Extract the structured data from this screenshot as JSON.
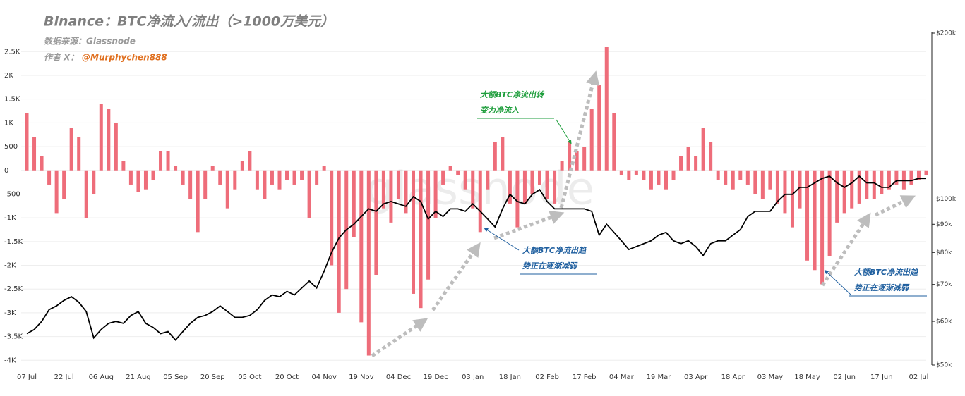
{
  "chart_data": {
    "type": "bar",
    "title": "Binance：BTC净流入/流出（>1000万美元）",
    "subtitle": "数据来源：Glassnode",
    "author_label": "作者 X：",
    "author_handle": "@Murphychen888",
    "watermark": "glassnode",
    "categories": [
      "07 Jul",
      null,
      null,
      null,
      null,
      "22 Jul",
      null,
      null,
      null,
      null,
      "06 Aug",
      null,
      null,
      null,
      null,
      "21 Aug",
      null,
      null,
      null,
      null,
      "05 Sep",
      null,
      null,
      null,
      null,
      "20 Sep",
      null,
      null,
      null,
      null,
      "05 Oct",
      null,
      null,
      null,
      null,
      "20 Oct",
      null,
      null,
      null,
      null,
      "04 Nov",
      null,
      null,
      null,
      null,
      "19 Nov",
      null,
      null,
      null,
      null,
      "04 Dec",
      null,
      null,
      null,
      null,
      "19 Dec",
      null,
      null,
      null,
      null,
      "03 Jan",
      null,
      null,
      null,
      null,
      "18 Jan",
      null,
      null,
      null,
      null,
      "02 Feb",
      null,
      null,
      null,
      null,
      "17 Feb",
      null,
      null,
      null,
      null,
      "04 Mar",
      null,
      null,
      null,
      null,
      "19 Mar",
      null,
      null,
      null,
      null,
      "03 Apr",
      null,
      null,
      null,
      null,
      "18 Apr",
      null,
      null,
      null,
      null,
      "03 May",
      null,
      null,
      null,
      null,
      "18 May",
      null,
      null,
      null,
      null,
      "02 Jun",
      null,
      null,
      null,
      null,
      "17 Jun",
      null,
      null,
      null,
      null,
      "02 Jul",
      null
    ],
    "series": [
      {
        "type": "bar",
        "color": "#ee6d7a",
        "values": [
          1200,
          700,
          300,
          -300,
          -900,
          -600,
          900,
          700,
          -1000,
          -500,
          1400,
          1300,
          1000,
          200,
          -300,
          -450,
          -400,
          -200,
          400,
          400,
          100,
          -300,
          -600,
          -1300,
          -600,
          100,
          -300,
          -800,
          -400,
          200,
          400,
          -400,
          -600,
          -300,
          -400,
          -200,
          -300,
          -200,
          -1000,
          -300,
          100,
          -2000,
          -3000,
          -2500,
          -1400,
          -3200,
          -3900,
          -2200,
          -800,
          -1100,
          -600,
          -900,
          -2600,
          -2900,
          -2300,
          -1000,
          -300,
          100,
          -100,
          -400,
          -800,
          -1300,
          -400,
          600,
          700,
          -700,
          -1200,
          -700,
          -500,
          -300,
          -600,
          -700,
          200,
          600,
          400,
          500,
          1300,
          1800,
          2600,
          1200,
          -100,
          -200,
          -100,
          -200,
          -400,
          -300,
          -400,
          -200,
          300,
          500,
          300,
          900,
          600,
          -200,
          -300,
          -400,
          -200,
          -300,
          -500,
          -600,
          -400,
          -700,
          -900,
          -1200,
          -800,
          -1900,
          -2100,
          -2400,
          -1800,
          -1100,
          -900,
          -800,
          -700,
          -600,
          -600,
          -500,
          -400,
          -300,
          -400,
          -300,
          -200,
          -100
        ]
      },
      {
        "type": "line",
        "axis": "y2",
        "color": "#000000",
        "values": [
          57000,
          58000,
          60000,
          63000,
          64000,
          65500,
          66500,
          65000,
          62500,
          56000,
          58000,
          59500,
          60000,
          59500,
          61500,
          62500,
          59500,
          58500,
          57000,
          57500,
          55500,
          57500,
          59500,
          61000,
          61500,
          62500,
          64000,
          62500,
          61000,
          61000,
          61500,
          63000,
          65500,
          67000,
          66500,
          68000,
          67000,
          69000,
          71000,
          69000,
          74000,
          80000,
          85000,
          88000,
          90000,
          93000,
          96000,
          95000,
          98000,
          99000,
          98000,
          97000,
          101000,
          99000,
          92000,
          95000,
          93000,
          96000,
          96000,
          95000,
          98000,
          95000,
          92000,
          89000,
          96000,
          102000,
          99000,
          98000,
          102000,
          104000,
          99000,
          96000,
          96000,
          96000,
          96000,
          96000,
          95000,
          86000,
          90000,
          87000,
          84000,
          81000,
          82000,
          83000,
          84000,
          86000,
          87000,
          84000,
          83000,
          84000,
          82000,
          79000,
          83000,
          84000,
          84000,
          86000,
          88000,
          93000,
          95000,
          95000,
          95000,
          99000,
          102000,
          102000,
          105000,
          105000,
          107000,
          109000,
          110000,
          107000,
          105000,
          107000,
          110000,
          107000,
          107000,
          105000,
          105000,
          108000,
          108000,
          108000,
          109000,
          109000
        ]
      }
    ],
    "ylim": [
      -4070,
      2920
    ],
    "yticks": [
      {
        "value": 2500,
        "label": "2.5K"
      },
      {
        "value": 2000,
        "label": "2K"
      },
      {
        "value": 1500,
        "label": "1.5K"
      },
      {
        "value": 1000,
        "label": "1K"
      },
      500,
      0,
      -500,
      {
        "value": -1000,
        "label": "-1K"
      },
      {
        "value": -1500,
        "label": "-1.5K"
      },
      {
        "value": -2000,
        "label": "-2K"
      },
      {
        "value": -2500,
        "label": "-2.5K"
      },
      {
        "value": -3000,
        "label": "-3K"
      },
      {
        "value": -3500,
        "label": "-3.5K"
      },
      {
        "value": -4000,
        "label": "-4K"
      }
    ],
    "y2lim": [
      50000,
      200000
    ],
    "y2scale": "log",
    "y2ticks": [
      {
        "value": 200000,
        "label": "$200k"
      },
      {
        "value": 100000,
        "label": "$100k"
      },
      {
        "value": 90000,
        "label": "$90k"
      },
      {
        "value": 80000,
        "label": "$80k"
      },
      {
        "value": 70000,
        "label": "$70k"
      },
      {
        "value": 60000,
        "label": "$60k"
      },
      {
        "value": 50000,
        "label": "$50k"
      }
    ],
    "grid": true,
    "annotations": [
      {
        "lines": [
          "大额BTC净流出转",
          "变为净流入"
        ],
        "color": "#1e9e3c"
      },
      {
        "lines": [
          "大额BTC净流出趋",
          "势正在逐渐减弱"
        ],
        "color": "#1f5f9f"
      },
      {
        "lines": [
          "大额BTC净流出趋",
          "势正在逐渐减弱"
        ],
        "color": "#1f5f9f"
      }
    ]
  }
}
